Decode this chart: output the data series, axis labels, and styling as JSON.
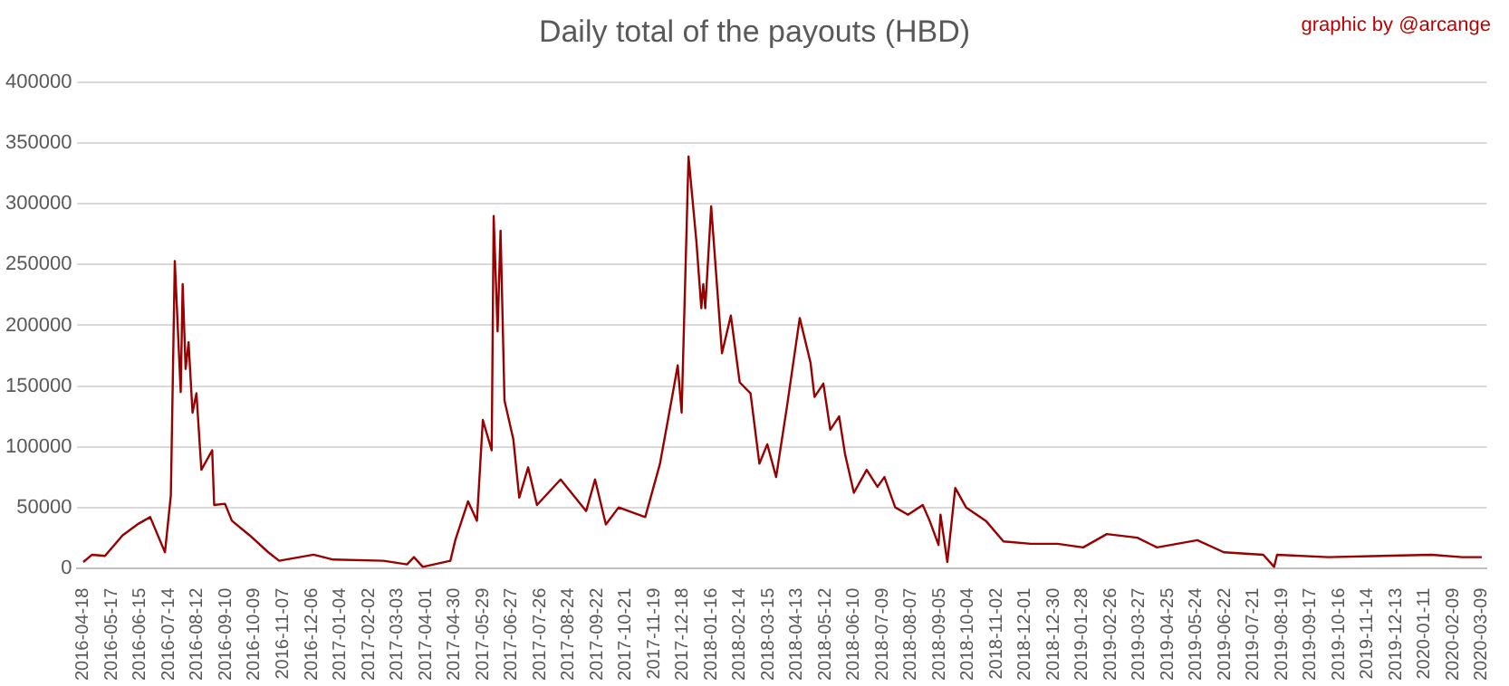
{
  "chart_data": {
    "type": "line",
    "title": "Daily total of the payouts (HBD)",
    "annotations": [
      "graphic by @arcange"
    ],
    "x": [
      "2016-04-18",
      "2016-04-27",
      "2016-05-10",
      "2016-05-28",
      "2016-06-12",
      "2016-06-25",
      "2016-07-10",
      "2016-07-16",
      "2016-07-20",
      "2016-07-26",
      "2016-07-28",
      "2016-07-31",
      "2016-08-03",
      "2016-08-07",
      "2016-08-11",
      "2016-08-16",
      "2016-08-27",
      "2016-08-29",
      "2016-09-09",
      "2016-09-16",
      "2016-10-04",
      "2016-10-23",
      "2016-11-03",
      "2016-12-08",
      "2016-12-28",
      "2017-02-17",
      "2017-03-13",
      "2017-03-20",
      "2017-03-29",
      "2017-04-26",
      "2017-05-01",
      "2017-05-14",
      "2017-05-23",
      "2017-05-29",
      "2017-06-07",
      "2017-06-09",
      "2017-06-13",
      "2017-06-16",
      "2017-06-20",
      "2017-06-29",
      "2017-07-05",
      "2017-07-14",
      "2017-07-23",
      "2017-08-16",
      "2017-09-11",
      "2017-09-20",
      "2017-10-01",
      "2017-10-14",
      "2017-11-10",
      "2017-11-25",
      "2017-12-08",
      "2017-12-13",
      "2017-12-17",
      "2017-12-24",
      "2018-01-01",
      "2018-01-06",
      "2018-01-08",
      "2018-01-10",
      "2018-01-16",
      "2018-01-27",
      "2018-02-05",
      "2018-02-14",
      "2018-02-25",
      "2018-03-06",
      "2018-03-14",
      "2018-03-23",
      "2018-04-03",
      "2018-04-16",
      "2018-04-27",
      "2018-05-01",
      "2018-05-10",
      "2018-05-17",
      "2018-05-26",
      "2018-06-01",
      "2018-06-10",
      "2018-06-23",
      "2018-07-04",
      "2018-07-11",
      "2018-07-22",
      "2018-08-04",
      "2018-08-19",
      "2018-08-26",
      "2018-09-04",
      "2018-09-06",
      "2018-09-13",
      "2018-09-21",
      "2018-10-02",
      "2018-10-22",
      "2018-11-09",
      "2018-12-07",
      "2019-01-03",
      "2019-01-29",
      "2019-02-22",
      "2019-03-25",
      "2019-04-14",
      "2019-05-25",
      "2019-06-21",
      "2019-07-31",
      "2019-08-11",
      "2019-08-14",
      "2019-10-05",
      "2020-01-18",
      "2020-02-18",
      "2020-03-09"
    ],
    "series": [
      {
        "color": "#990000",
        "values": [
          5000,
          11000,
          10000,
          27000,
          36000,
          42000,
          13000,
          60000,
          253000,
          145000,
          234000,
          164000,
          186000,
          128000,
          144000,
          81000,
          97000,
          52000,
          53000,
          39000,
          27000,
          13000,
          6000,
          11000,
          7000,
          6000,
          3000,
          9000,
          1000,
          6000,
          23000,
          55000,
          39000,
          122000,
          97000,
          290000,
          195000,
          278000,
          138000,
          106000,
          58000,
          83000,
          52000,
          73000,
          47000,
          73000,
          36000,
          50000,
          42000,
          86000,
          144000,
          167000,
          128000,
          339000,
          269000,
          214000,
          234000,
          214000,
          298000,
          177000,
          208000,
          153000,
          144000,
          86000,
          102000,
          75000,
          133000,
          206000,
          169000,
          141000,
          152000,
          114000,
          125000,
          94000,
          62000,
          81000,
          67000,
          75000,
          50000,
          44000,
          52000,
          39000,
          19000,
          44000,
          5000,
          66000,
          50000,
          39000,
          22000,
          20000,
          20000,
          17000,
          28000,
          25000,
          17000,
          23000,
          13000,
          11000,
          1000,
          11000,
          9000,
          11000,
          9000,
          9000
        ]
      }
    ],
    "xlim": [
      "2016-04-12",
      "2020-03-14"
    ],
    "xticks": [
      "2016-04-18",
      "2016-05-17",
      "2016-06-15",
      "2016-07-14",
      "2016-08-12",
      "2016-09-10",
      "2016-10-09",
      "2016-11-07",
      "2016-12-06",
      "2017-01-04",
      "2017-02-02",
      "2017-03-03",
      "2017-04-01",
      "2017-04-30",
      "2017-05-29",
      "2017-06-27",
      "2017-07-26",
      "2017-08-24",
      "2017-09-22",
      "2017-10-21",
      "2017-11-19",
      "2017-12-18",
      "2018-01-16",
      "2018-02-14",
      "2018-03-15",
      "2018-04-13",
      "2018-05-12",
      "2018-06-10",
      "2018-07-09",
      "2018-08-07",
      "2018-09-05",
      "2018-10-04",
      "2018-11-02",
      "2018-12-01",
      "2018-12-30",
      "2019-01-28",
      "2019-02-26",
      "2019-03-27",
      "2019-04-25",
      "2019-05-24",
      "2019-06-22",
      "2019-07-21",
      "2019-08-19",
      "2019-09-17",
      "2019-10-16",
      "2019-11-14",
      "2019-12-13",
      "2020-01-11",
      "2020-02-09",
      "2020-03-09"
    ],
    "ylim": [
      0,
      400000
    ],
    "yticks": [
      0,
      50000,
      100000,
      150000,
      200000,
      250000,
      300000,
      350000,
      400000
    ],
    "grid": "y",
    "legend": false,
    "marker": "none",
    "line_style": "solid"
  }
}
